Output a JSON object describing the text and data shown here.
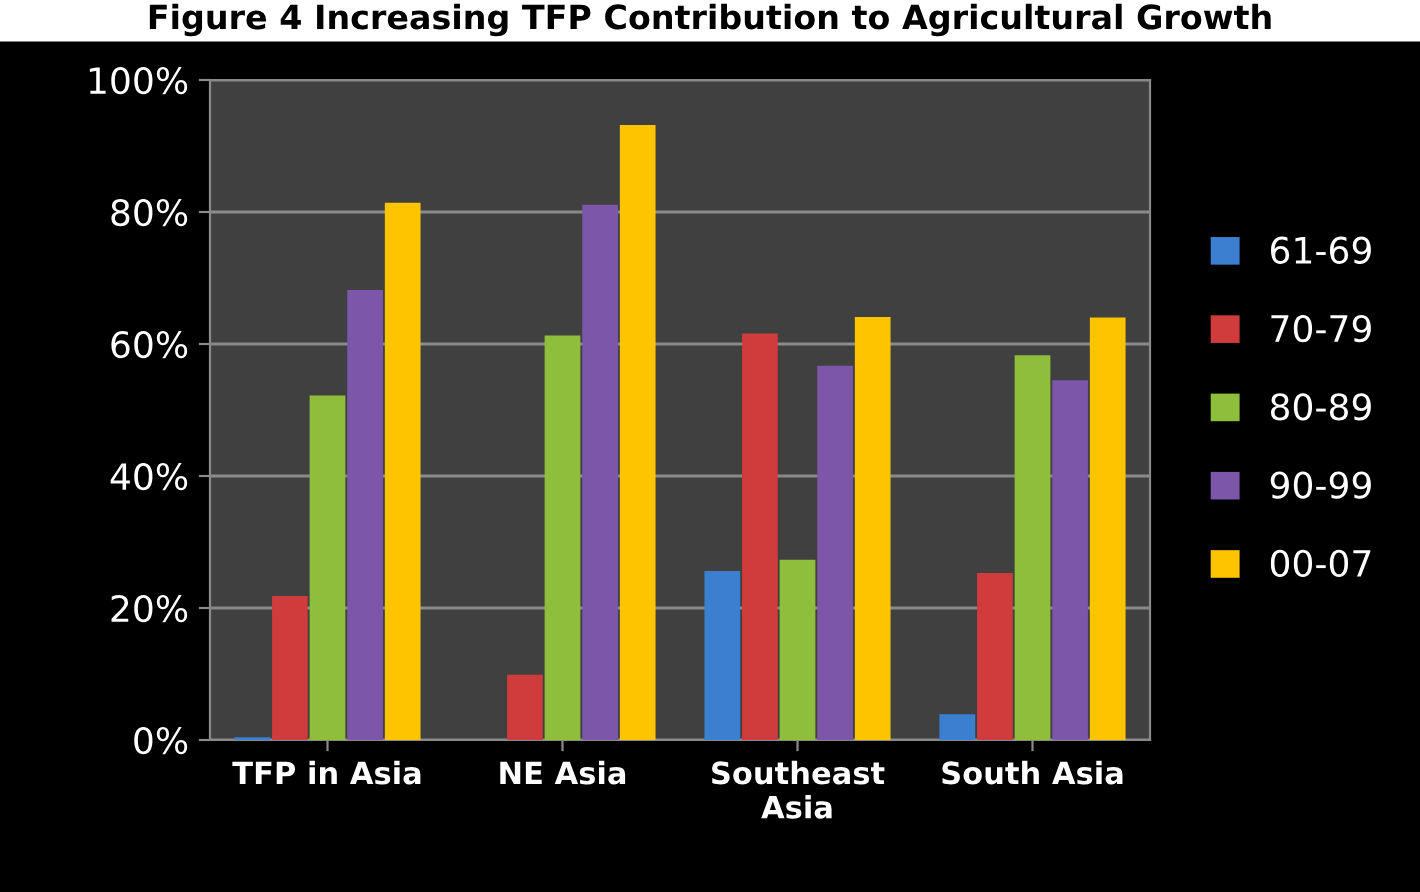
{
  "chart_data": {
    "type": "bar",
    "title": "Figure 4 Increasing TFP Contribution to Agricultural Growth",
    "categories": [
      "TFP in Asia",
      "NE Asia",
      "Southeast Asia",
      "South Asia"
    ],
    "series": [
      {
        "name": "61-69",
        "color": "#3b7fd0",
        "values": [
          0.4,
          null,
          25.6,
          3.9
        ]
      },
      {
        "name": "70-79",
        "color": "#d03c3c",
        "values": [
          21.8,
          9.9,
          61.6,
          25.3
        ]
      },
      {
        "name": "80-89",
        "color": "#8fbd3c",
        "values": [
          52.2,
          61.3,
          27.3,
          58.3
        ]
      },
      {
        "name": "90-99",
        "color": "#7b56a9",
        "values": [
          68.2,
          81.1,
          56.7,
          54.5
        ]
      },
      {
        "name": "00-07",
        "color": "#ffc400",
        "values": [
          81.4,
          93.2,
          64.1,
          64.0
        ]
      }
    ],
    "ylim": [
      0,
      100
    ],
    "yticks": [
      {
        "value": 0,
        "label": "0%"
      },
      {
        "value": 20,
        "label": "20%"
      },
      {
        "value": 40,
        "label": "40%"
      },
      {
        "value": 60,
        "label": "60%"
      },
      {
        "value": 80,
        "label": "80%"
      },
      {
        "value": 100,
        "label": "100%"
      }
    ],
    "grid": "y",
    "legend": "right"
  }
}
